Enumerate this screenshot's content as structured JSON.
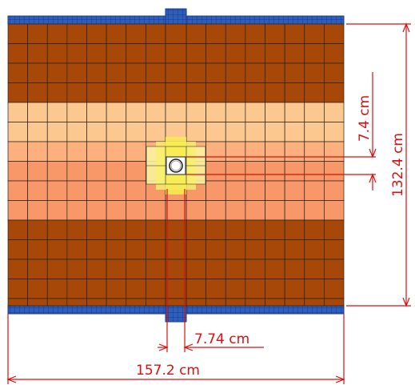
{
  "colors": {
    "dark_brown": "#a84808",
    "peach_light": "#fcc890",
    "peach_mid": "#fdb07c",
    "peach_salmon": "#f89868",
    "yellow": "#f8f06a",
    "yellow_light": "#fbf6a0",
    "blue_cap": "#2f5fbd",
    "grid_line": "#222222",
    "dimension": "#d81010",
    "pipe_fill": "#ffffff"
  },
  "dimensions": {
    "width_label": "157.2 cm",
    "height_label": "132.4 cm",
    "slot_width_label": "7.74 cm",
    "offset_label": "7.4 cm"
  }
}
